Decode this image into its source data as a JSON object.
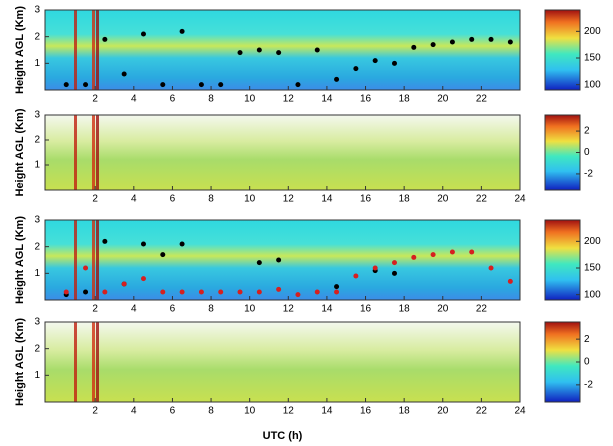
{
  "chart_data": [
    {
      "type": "heatmap",
      "ylabel": "Height AGL (Km)",
      "xlim": [
        -0.6,
        24
      ],
      "xticks": [
        2,
        4,
        6,
        8,
        10,
        12,
        14,
        16,
        18,
        20,
        22
      ],
      "ylim": [
        0,
        3
      ],
      "yticks": [
        1,
        2,
        3
      ],
      "colorbar": {
        "lim": [
          90,
          240
        ],
        "ticks": [
          100,
          150,
          200
        ]
      },
      "points": [
        {
          "color": "#000000",
          "x": [
            0.5,
            1.5,
            2.5,
            3.5,
            4.5,
            5.5,
            6.5,
            7.5,
            8.5,
            9.5,
            10.5,
            11.5,
            12.5,
            13.5,
            14.5,
            15.5,
            16.5,
            17.5,
            18.5,
            19.5,
            20.5,
            21.5,
            22.5,
            23.5
          ],
          "y": [
            0.2,
            0.2,
            1.9,
            0.6,
            2.1,
            0.2,
            2.2,
            0.2,
            0.2,
            1.4,
            1.5,
            1.4,
            0.2,
            1.5,
            0.4,
            0.8,
            1.1,
            1.0,
            1.6,
            1.7,
            1.8,
            1.9,
            1.9,
            1.8
          ]
        }
      ]
    },
    {
      "type": "heatmap",
      "ylabel": "Height AGL (Km)",
      "xlim": [
        -0.6,
        24
      ],
      "xticks": [
        2,
        4,
        6,
        8,
        10,
        12,
        14,
        16,
        18,
        20,
        22,
        24
      ],
      "ylim": [
        0,
        3
      ],
      "yticks": [
        1,
        2,
        3
      ],
      "colorbar": {
        "lim": [
          -3.5,
          3.5
        ],
        "ticks": [
          -2,
          0,
          2
        ]
      },
      "points": []
    },
    {
      "type": "heatmap",
      "ylabel": "Height AGL (Km)",
      "xlim": [
        -0.6,
        24
      ],
      "xticks": [
        2,
        4,
        6,
        8,
        10,
        12,
        14,
        16,
        18,
        20,
        22
      ],
      "ylim": [
        0,
        3
      ],
      "yticks": [
        1,
        2,
        3
      ],
      "colorbar": {
        "lim": [
          90,
          240
        ],
        "ticks": [
          100,
          150,
          200
        ]
      },
      "points": [
        {
          "color": "#000000",
          "x": [
            0.5,
            1.5,
            2.5,
            3.5,
            4.5,
            5.5,
            6.5,
            10.5,
            11.5,
            14.5,
            16.5,
            17.5
          ],
          "y": [
            0.2,
            0.3,
            2.2,
            0.6,
            2.1,
            1.7,
            2.1,
            1.4,
            1.5,
            0.5,
            1.1,
            1.0
          ]
        },
        {
          "color": "#d62020",
          "x": [
            0.5,
            1.5,
            2.5,
            3.5,
            4.5,
            5.5,
            6.5,
            7.5,
            8.5,
            9.5,
            10.5,
            11.5,
            12.5,
            13.5,
            14.5,
            15.5,
            16.5,
            17.5,
            18.5,
            19.5,
            20.5,
            21.5,
            22.5,
            23.5
          ],
          "y": [
            0.3,
            1.2,
            0.3,
            0.6,
            0.8,
            0.3,
            0.3,
            0.3,
            0.3,
            0.3,
            0.3,
            0.4,
            0.2,
            0.3,
            0.3,
            0.9,
            1.2,
            1.4,
            1.6,
            1.7,
            1.8,
            1.8,
            1.2,
            0.7
          ]
        }
      ]
    },
    {
      "type": "heatmap",
      "ylabel": "Height AGL (Km)",
      "xlabel": "UTC (h)",
      "xlim": [
        -0.6,
        24
      ],
      "xticks": [
        2,
        4,
        6,
        8,
        10,
        12,
        14,
        16,
        18,
        20,
        22,
        24
      ],
      "ylim": [
        0,
        3
      ],
      "yticks": [
        1,
        2,
        3
      ],
      "colorbar": {
        "lim": [
          -3.5,
          3.5
        ],
        "ticks": [
          -2,
          0,
          2
        ]
      },
      "points": []
    }
  ]
}
